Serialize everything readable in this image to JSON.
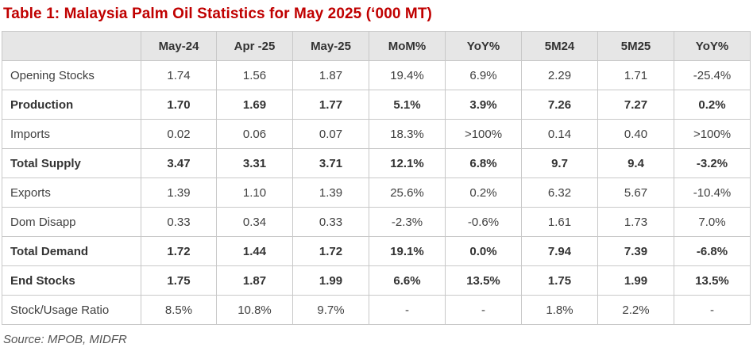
{
  "title": "Table 1: Malaysia Palm Oil Statistics for May 2025 (‘000 MT)",
  "source": "Source: MPOB, MIDFR",
  "colors": {
    "title": "#c00000",
    "header_bg": "#e6e6e6",
    "border": "#c8c8c8"
  },
  "table": {
    "columns": [
      "",
      "May-24",
      "Apr -25",
      "May-25",
      "MoM%",
      "YoY%",
      "5M24",
      "5M25",
      "YoY%"
    ],
    "rows": [
      {
        "bold": false,
        "cells": [
          "Opening Stocks",
          "1.74",
          "1.56",
          "1.87",
          "19.4%",
          "6.9%",
          "2.29",
          "1.71",
          "-25.4%"
        ]
      },
      {
        "bold": true,
        "cells": [
          "Production",
          "1.70",
          "1.69",
          "1.77",
          "5.1%",
          "3.9%",
          "7.26",
          "7.27",
          "0.2%"
        ]
      },
      {
        "bold": false,
        "cells": [
          "Imports",
          "0.02",
          "0.06",
          "0.07",
          "18.3%",
          ">100%",
          "0.14",
          "0.40",
          ">100%"
        ]
      },
      {
        "bold": true,
        "cells": [
          "Total Supply",
          "3.47",
          "3.31",
          "3.71",
          "12.1%",
          "6.8%",
          "9.7",
          "9.4",
          "-3.2%"
        ]
      },
      {
        "bold": false,
        "cells": [
          "Exports",
          "1.39",
          "1.10",
          "1.39",
          "25.6%",
          "0.2%",
          "6.32",
          "5.67",
          "-10.4%"
        ]
      },
      {
        "bold": false,
        "cells": [
          "Dom Disapp",
          "0.33",
          "0.34",
          "0.33",
          "-2.3%",
          "-0.6%",
          "1.61",
          "1.73",
          "7.0%"
        ]
      },
      {
        "bold": true,
        "cells": [
          "Total Demand",
          "1.72",
          "1.44",
          "1.72",
          "19.1%",
          "0.0%",
          "7.94",
          "7.39",
          "-6.8%"
        ]
      },
      {
        "bold": true,
        "cells": [
          "End Stocks",
          "1.75",
          "1.87",
          "1.99",
          "6.6%",
          "13.5%",
          "1.75",
          "1.99",
          "13.5%"
        ]
      },
      {
        "bold": false,
        "cells": [
          "Stock/Usage Ratio",
          "8.5%",
          "10.8%",
          "9.7%",
          "-",
          "-",
          "1.8%",
          "2.2%",
          "-"
        ]
      }
    ]
  }
}
